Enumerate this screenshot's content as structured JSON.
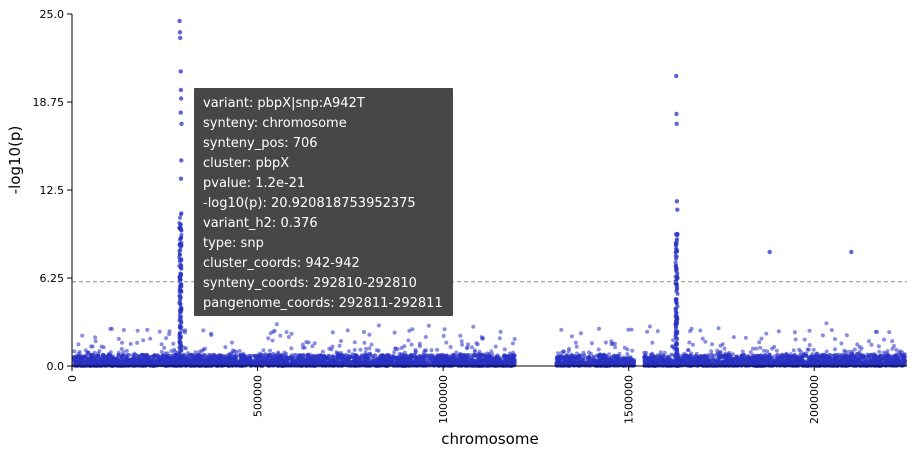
{
  "chart_data": {
    "type": "scatter",
    "title": "",
    "xlabel": "chromosome",
    "ylabel": "-log10(p)",
    "xlim": [
      0,
      2250000
    ],
    "ylim": [
      0,
      25
    ],
    "y_ticks": [
      0,
      6.25,
      12.5,
      18.75,
      25
    ],
    "y_tick_labels": [
      "0.0",
      "6.25",
      "12.5",
      "18.75",
      "25.0"
    ],
    "x_ticks": [
      0,
      500000,
      1000000,
      1500000,
      2000000
    ],
    "x_tick_labels": [
      "0",
      "500000",
      "1000000",
      "1500000",
      "2000000"
    ],
    "threshold": 5.98,
    "point_color": "#2a32c4",
    "threshold_color": "#8c8c8c",
    "grid": false,
    "peaks": [
      {
        "x": 292810,
        "y": 20.92
      },
      {
        "x": 290000,
        "y": 24.5
      },
      {
        "x": 291000,
        "y": 23.7
      },
      {
        "x": 291500,
        "y": 23.3
      },
      {
        "x": 293500,
        "y": 19.6
      },
      {
        "x": 294000,
        "y": 19.0
      },
      {
        "x": 293000,
        "y": 18.0
      },
      {
        "x": 295000,
        "y": 17.2
      },
      {
        "x": 294500,
        "y": 14.6
      },
      {
        "x": 293800,
        "y": 13.3
      },
      {
        "x": 1628000,
        "y": 20.6
      },
      {
        "x": 1629000,
        "y": 17.9
      },
      {
        "x": 1629500,
        "y": 17.2
      },
      {
        "x": 1630000,
        "y": 11.7
      },
      {
        "x": 1631000,
        "y": 11.1
      },
      {
        "x": 1880000,
        "y": 8.1
      },
      {
        "x": 2100000,
        "y": 8.1
      }
    ]
  },
  "tooltip": {
    "lines": [
      "variant: pbpX|snp:A942T",
      "synteny: chromosome",
      "synteny_pos: 706",
      "cluster: pbpX",
      "pvalue: 1.2e-21",
      "-log10(p): 20.920818753952375",
      "variant_h2: 0.376",
      "type: snp",
      "cluster_coords: 942-942",
      "synteny_coords: 292810-292810",
      "pangenome_coords: 292811-292811"
    ]
  }
}
